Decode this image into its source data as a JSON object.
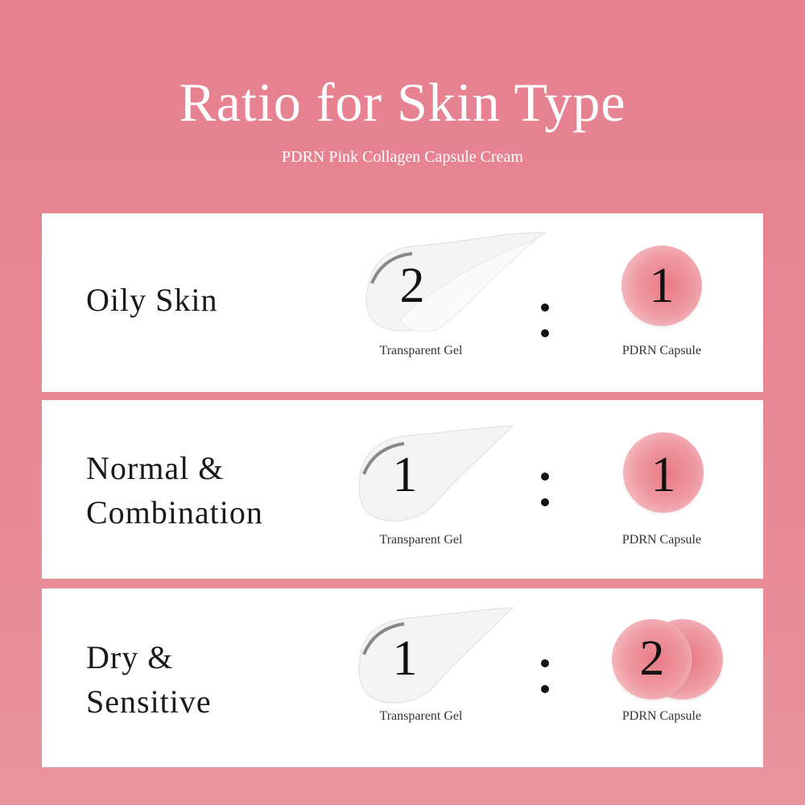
{
  "header": {
    "title": "Ratio for Skin Type",
    "subtitle": "PDRN Pink Collagen Capsule Cream"
  },
  "rows": [
    {
      "skin_lines": [
        "Oily Skin"
      ],
      "gel_ratio": "2",
      "capsule_ratio": "1",
      "gel_label": "Transparent Gel",
      "capsule_label": "PDRN Capsule",
      "capsule_count": 1
    },
    {
      "skin_lines": [
        "Normal &",
        "Combination"
      ],
      "gel_ratio": "1",
      "capsule_ratio": "1",
      "gel_label": "Transparent Gel",
      "capsule_label": "PDRN Capsule",
      "capsule_count": 1
    },
    {
      "skin_lines": [
        "Dry &",
        "Sensitive"
      ],
      "gel_ratio": "1",
      "capsule_ratio": "2",
      "gel_label": "Transparent Gel",
      "capsule_label": "PDRN Capsule",
      "capsule_count": 2
    }
  ],
  "colors": {
    "background": "#e6808f",
    "card": "#ffffff",
    "capsule": "#ec8e98"
  }
}
